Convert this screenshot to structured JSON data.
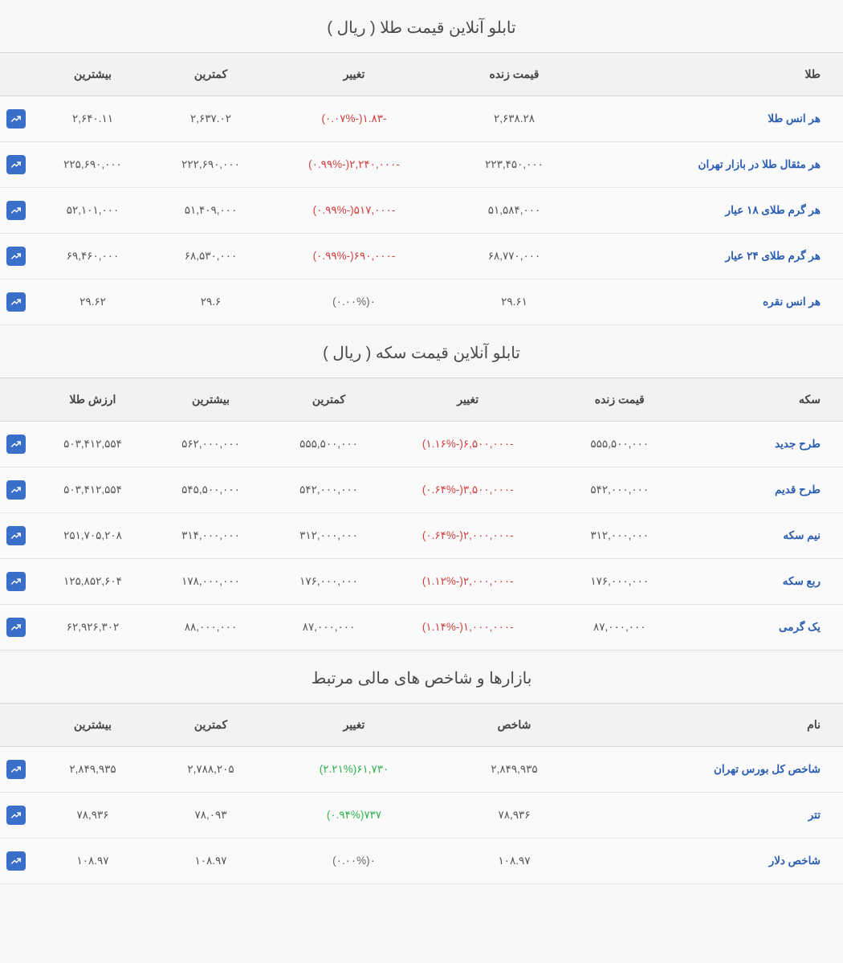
{
  "colors": {
    "background": "#f7f7f8",
    "header_bg": "#f2f2f3",
    "border": "#d8d8d8",
    "row_border": "#e3e3e3",
    "text": "#555",
    "title": "#4a4a4a",
    "link": "#2a5db0",
    "neg": "#d14040",
    "pos": "#2fb14f",
    "chart_btn": "#3a6fc9"
  },
  "fontsize": {
    "title": 20,
    "th": 14,
    "td": 13.5
  },
  "gold": {
    "title": "تابلو آنلاین قیمت طلا ( ریال )",
    "columns": {
      "name": "طلا",
      "live": "قیمت زنده",
      "change": "تغییر",
      "low": "کمترین",
      "high": "بیشترین"
    },
    "rows": [
      {
        "name": "هر انس طلا",
        "live": "۲,۶۳۸.۲۸",
        "change_amt": "-۱.۸۳",
        "change_pct": "-۰.۰۷%",
        "dir": "neg",
        "low": "۲,۶۳۷.۰۲",
        "high": "۲,۶۴۰.۱۱"
      },
      {
        "name": "هر مثقال طلا در بازار تهران",
        "live": "۲۲۳,۴۵۰,۰۰۰",
        "change_amt": "-۲,۲۴۰,۰۰۰",
        "change_pct": "-۰.۹۹%",
        "dir": "neg",
        "low": "۲۲۲,۶۹۰,۰۰۰",
        "high": "۲۲۵,۶۹۰,۰۰۰"
      },
      {
        "name": "هر گرم طلای ۱۸ عیار",
        "live": "۵۱,۵۸۴,۰۰۰",
        "change_amt": "-۵۱۷,۰۰۰",
        "change_pct": "-۰.۹۹%",
        "dir": "neg",
        "low": "۵۱,۴۰۹,۰۰۰",
        "high": "۵۲,۱۰۱,۰۰۰"
      },
      {
        "name": "هر گرم طلای ۲۴ عیار",
        "live": "۶۸,۷۷۰,۰۰۰",
        "change_amt": "-۶۹۰,۰۰۰",
        "change_pct": "-۰.۹۹%",
        "dir": "neg",
        "low": "۶۸,۵۳۰,۰۰۰",
        "high": "۶۹,۴۶۰,۰۰۰"
      },
      {
        "name": "هر انس نقره",
        "live": "۲۹.۶۱",
        "change_amt": "۰",
        "change_pct": "۰.۰۰%",
        "dir": "zero",
        "low": "۲۹.۶",
        "high": "۲۹.۶۲"
      }
    ]
  },
  "coin": {
    "title": "تابلو آنلاین قیمت سکه ( ریال )",
    "columns": {
      "name": "سکه",
      "live": "قیمت زنده",
      "change": "تغییر",
      "low": "کمترین",
      "high": "بیشترین",
      "gold": "ارزش طلا"
    },
    "rows": [
      {
        "name": "طرح جدید",
        "live": "۵۵۵,۵۰۰,۰۰۰",
        "change_amt": "-۶,۵۰۰,۰۰۰",
        "change_pct": "-۱.۱۶%",
        "dir": "neg",
        "low": "۵۵۵,۵۰۰,۰۰۰",
        "high": "۵۶۲,۰۰۰,۰۰۰",
        "gold": "۵۰۳,۴۱۲,۵۵۴"
      },
      {
        "name": "طرح قدیم",
        "live": "۵۴۲,۰۰۰,۰۰۰",
        "change_amt": "-۳,۵۰۰,۰۰۰",
        "change_pct": "-۰.۶۴%",
        "dir": "neg",
        "low": "۵۴۲,۰۰۰,۰۰۰",
        "high": "۵۴۵,۵۰۰,۰۰۰",
        "gold": "۵۰۳,۴۱۲,۵۵۴"
      },
      {
        "name": "نیم سکه",
        "live": "۳۱۲,۰۰۰,۰۰۰",
        "change_amt": "-۲,۰۰۰,۰۰۰",
        "change_pct": "-۰.۶۴%",
        "dir": "neg",
        "low": "۳۱۲,۰۰۰,۰۰۰",
        "high": "۳۱۴,۰۰۰,۰۰۰",
        "gold": "۲۵۱,۷۰۵,۲۰۸"
      },
      {
        "name": "ربع سکه",
        "live": "۱۷۶,۰۰۰,۰۰۰",
        "change_amt": "-۲,۰۰۰,۰۰۰",
        "change_pct": "-۱.۱۲%",
        "dir": "neg",
        "low": "۱۷۶,۰۰۰,۰۰۰",
        "high": "۱۷۸,۰۰۰,۰۰۰",
        "gold": "۱۲۵,۸۵۲,۶۰۴"
      },
      {
        "name": "یک گرمی",
        "live": "۸۷,۰۰۰,۰۰۰",
        "change_amt": "-۱,۰۰۰,۰۰۰",
        "change_pct": "-۱.۱۴%",
        "dir": "neg",
        "low": "۸۷,۰۰۰,۰۰۰",
        "high": "۸۸,۰۰۰,۰۰۰",
        "gold": "۶۲,۹۲۶,۳۰۲"
      }
    ]
  },
  "market": {
    "title": "بازارها و شاخص های مالی مرتبط",
    "columns": {
      "name": "نام",
      "live": "شاخص",
      "change": "تغییر",
      "low": "کمترین",
      "high": "بیشترین"
    },
    "rows": [
      {
        "name": "شاخص کل بورس تهران",
        "live": "۲,۸۴۹,۹۳۵",
        "change_amt": "۶۱,۷۳۰",
        "change_pct": "۲.۲۱%",
        "dir": "pos",
        "low": "۲,۷۸۸,۲۰۵",
        "high": "۲,۸۴۹,۹۳۵"
      },
      {
        "name": "تتر",
        "live": "۷۸,۹۳۶",
        "change_amt": "۷۳۷",
        "change_pct": "۰.۹۴%",
        "dir": "pos",
        "low": "۷۸,۰۹۳",
        "high": "۷۸,۹۳۶"
      },
      {
        "name": "شاخص دلار",
        "live": "۱۰۸.۹۷",
        "change_amt": "۰",
        "change_pct": "۰.۰۰%",
        "dir": "zero",
        "low": "۱۰۸.۹۷",
        "high": "۱۰۸.۹۷"
      }
    ]
  }
}
